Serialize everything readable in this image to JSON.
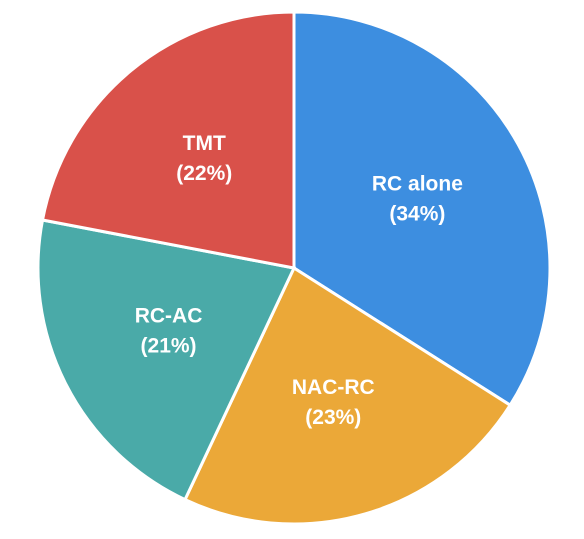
{
  "chart_data": {
    "type": "pie",
    "categories": [
      "RC alone",
      "NAC-RC",
      "RC-AC",
      "TMT"
    ],
    "values": [
      34,
      23,
      21,
      22
    ],
    "value_labels": [
      "(34%)",
      "(23%)",
      "(21%)",
      "(22%)"
    ],
    "colors": [
      "#3d8ee0",
      "#eba838",
      "#4aaaa8",
      "#d9514a"
    ]
  }
}
